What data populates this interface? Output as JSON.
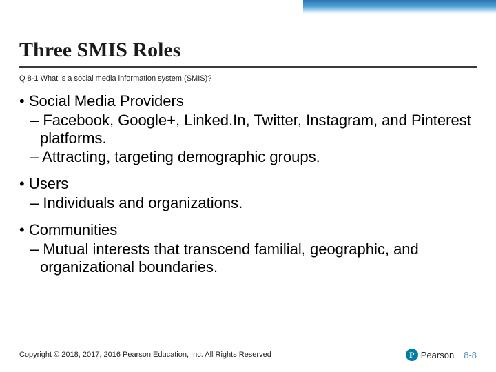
{
  "accent": {
    "gradient_from": "#0a5a9e",
    "gradient_mid": "#2a8fd0",
    "gradient_to": "#ffffff"
  },
  "title": "Three SMIS Roles",
  "subtitle": "Q 8-1 What is a social media information system (SMIS)?",
  "bullets": [
    {
      "label": "Social Media Providers",
      "subs": [
        "Facebook, Google+, Linked.In, Twitter, Instagram, and Pinterest platforms.",
        "Attracting, targeting demographic groups."
      ]
    },
    {
      "label": "Users",
      "subs": [
        "Individuals and organizations."
      ]
    },
    {
      "label": "Communities",
      "subs": [
        "Mutual interests that transcend familial, geographic, and organizational boundaries."
      ]
    }
  ],
  "footer": {
    "copyright": "Copyright © 2018, 2017, 2016 Pearson Education, Inc. All Rights Reserved",
    "brand": "Pearson",
    "slide_number": "8-8"
  },
  "colors": {
    "title_color": "#1a1a1a",
    "underline": "#3a3a3a",
    "body_text": "#000000",
    "slide_num": "#5a8fb5",
    "brand_circle": "#007fa3"
  }
}
